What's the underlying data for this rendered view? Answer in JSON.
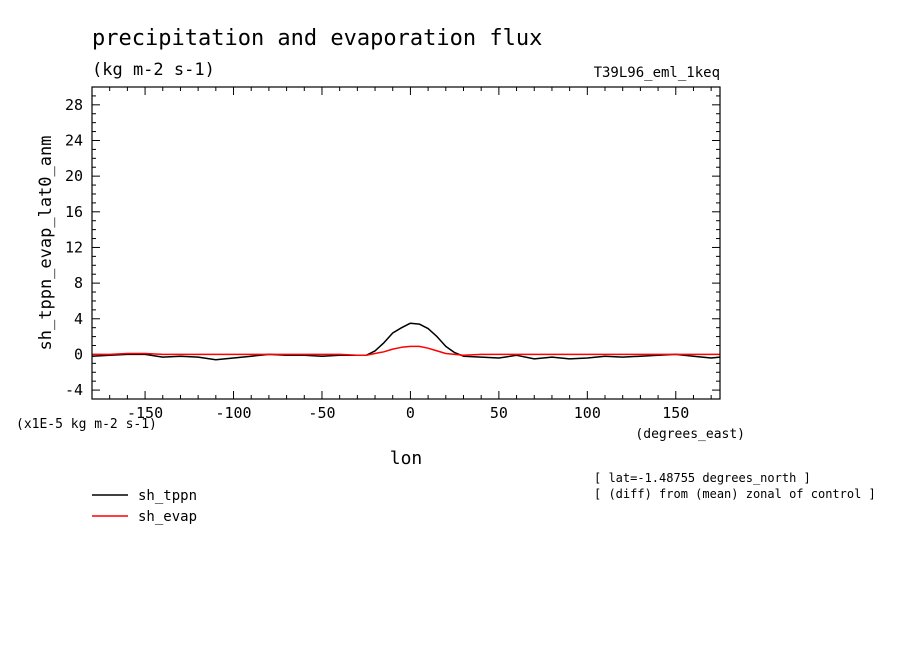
{
  "chart_data": {
    "type": "line",
    "title": "precipitation and evaporation flux",
    "units": "(kg m-2 s-1)",
    "run_label": "T39L96_eml_1keq",
    "ylabel": "sh_tppn_evap_lat0_anm",
    "xlabel": "lon",
    "x_units": "(degrees_east)",
    "y_scale_note": "(x1E-5 kg m-2 s-1)",
    "xlim": [
      -180,
      175
    ],
    "ylim": [
      -5,
      30
    ],
    "x_ticks": [
      -150,
      -100,
      -50,
      0,
      50,
      100,
      150
    ],
    "x_tick_labels": [
      "-150",
      "-100",
      "-50",
      "0",
      "50",
      "100",
      "150"
    ],
    "y_ticks": [
      -4,
      0,
      4,
      8,
      12,
      16,
      20,
      24,
      28
    ],
    "y_tick_labels": [
      "-4",
      "0",
      "4",
      "8",
      "12",
      "16",
      "20",
      "24",
      "28"
    ],
    "notes": [
      "[ lat=-1.48755 degrees_north ]",
      "[ (diff) from (mean) zonal of control ]"
    ],
    "series": [
      {
        "name": "sh_tppn",
        "color": "#000000",
        "x": [
          -180,
          -170,
          -160,
          -150,
          -140,
          -130,
          -120,
          -110,
          -100,
          -90,
          -80,
          -70,
          -60,
          -50,
          -40,
          -30,
          -25,
          -20,
          -15,
          -10,
          -5,
          0,
          5,
          10,
          15,
          20,
          25,
          30,
          40,
          50,
          60,
          70,
          80,
          90,
          100,
          110,
          120,
          130,
          140,
          150,
          160,
          170,
          175
        ],
        "y": [
          -0.2,
          -0.1,
          0.0,
          0.0,
          -0.3,
          -0.2,
          -0.3,
          -0.6,
          -0.4,
          -0.2,
          0.0,
          -0.1,
          -0.1,
          -0.2,
          -0.1,
          -0.1,
          -0.1,
          0.4,
          1.3,
          2.4,
          3.0,
          3.5,
          3.4,
          2.9,
          2.0,
          0.9,
          0.2,
          -0.2,
          -0.3,
          -0.4,
          -0.1,
          -0.5,
          -0.3,
          -0.5,
          -0.4,
          -0.2,
          -0.3,
          -0.2,
          -0.1,
          0.0,
          -0.2,
          -0.4,
          -0.3
        ]
      },
      {
        "name": "sh_evap",
        "color": "#ff0000",
        "x": [
          -180,
          -170,
          -160,
          -150,
          -140,
          -130,
          -120,
          -110,
          -100,
          -90,
          -80,
          -70,
          -60,
          -50,
          -40,
          -30,
          -25,
          -20,
          -15,
          -10,
          -5,
          0,
          5,
          10,
          15,
          20,
          25,
          30,
          40,
          50,
          60,
          70,
          80,
          90,
          100,
          110,
          120,
          130,
          140,
          150,
          160,
          170,
          175
        ],
        "y": [
          0.0,
          0.0,
          0.1,
          0.1,
          0.0,
          0.0,
          0.0,
          0.0,
          0.0,
          0.0,
          0.0,
          0.0,
          0.0,
          0.0,
          0.0,
          -0.1,
          -0.1,
          0.1,
          0.3,
          0.6,
          0.8,
          0.9,
          0.9,
          0.7,
          0.4,
          0.1,
          0.0,
          -0.1,
          0.0,
          0.0,
          0.0,
          0.0,
          0.0,
          0.0,
          0.0,
          0.0,
          0.0,
          0.0,
          0.0,
          0.0,
          0.0,
          0.0,
          0.0
        ]
      }
    ],
    "legend_placement": "bottom-left"
  }
}
